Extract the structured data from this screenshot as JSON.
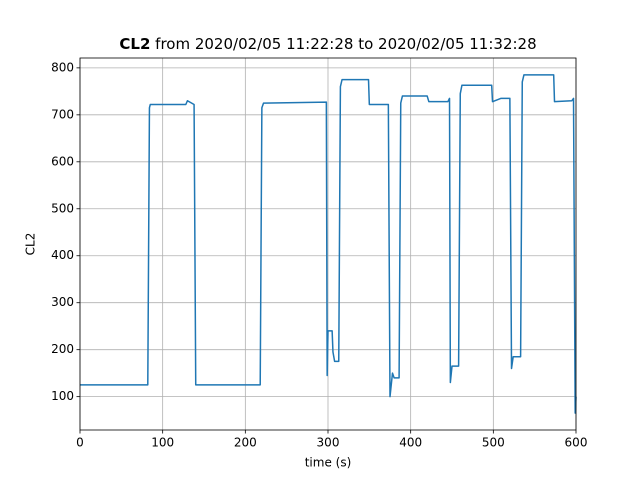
{
  "chart_data": {
    "type": "line",
    "title": [
      "CL2",
      "from 2020/02/05 11:22:28 to 2020/02/05 11:32:28"
    ],
    "x_label": "time (s)",
    "y_label": "CL2",
    "color": "#1f77b4",
    "grid": true,
    "xlim": [
      0,
      600
    ],
    "xticks": [
      0,
      100,
      200,
      300,
      400,
      500,
      600
    ],
    "ylim": [
      29,
      821
    ],
    "yticks": [
      100,
      200,
      300,
      400,
      500,
      600,
      700,
      800
    ],
    "x": [
      0,
      82,
      84,
      85,
      128,
      130,
      138,
      140,
      218,
      220,
      222,
      298,
      299,
      300,
      305,
      306,
      308,
      313,
      315,
      317,
      349,
      350,
      373,
      375,
      378,
      380,
      386,
      388,
      390,
      420,
      422,
      445,
      447,
      448,
      450,
      458,
      460,
      462,
      498,
      499,
      509,
      520,
      522,
      524,
      533,
      535,
      537,
      573,
      574,
      595,
      597,
      599,
      600
    ],
    "values": [
      125,
      125,
      715,
      722,
      722,
      730,
      722,
      125,
      125,
      715,
      725,
      727,
      145,
      240,
      240,
      195,
      175,
      175,
      760,
      775,
      775,
      722,
      722,
      100,
      150,
      140,
      140,
      725,
      740,
      740,
      728,
      728,
      735,
      130,
      165,
      165,
      745,
      763,
      763,
      728,
      735,
      735,
      160,
      185,
      185,
      770,
      785,
      785,
      728,
      730,
      735,
      65,
      100
    ]
  }
}
